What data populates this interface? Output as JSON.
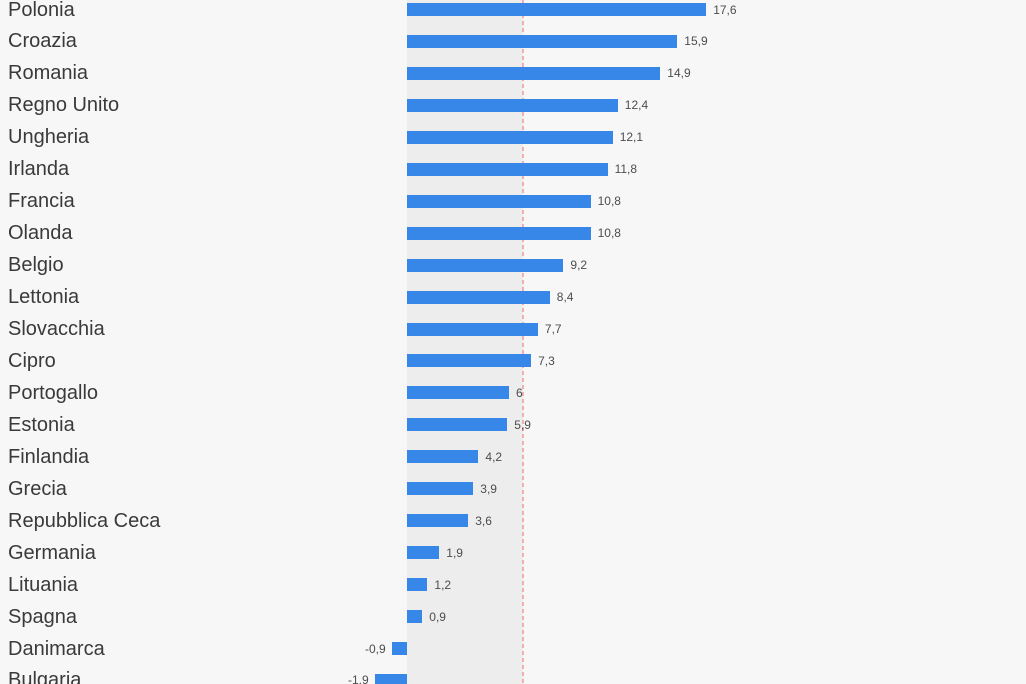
{
  "chart_data": {
    "type": "bar",
    "orientation": "horizontal",
    "title": "",
    "xlabel": "",
    "ylabel": "",
    "categories": [
      "Polonia",
      "Croazia",
      "Romania",
      "Regno Unito",
      "Ungheria",
      "Irlanda",
      "Francia",
      "Olanda",
      "Belgio",
      "Lettonia",
      "Slovacchia",
      "Cipro",
      "Portogallo",
      "Estonia",
      "Finlandia",
      "Grecia",
      "Repubblica Ceca",
      "Germania",
      "Lituania",
      "Spagna",
      "Danimarca",
      "Bulgaria"
    ],
    "values": [
      17.6,
      15.9,
      14.9,
      12.4,
      12.1,
      11.8,
      10.8,
      10.8,
      9.2,
      8.4,
      7.7,
      7.3,
      6,
      5.9,
      4.2,
      3.9,
      3.6,
      1.9,
      1.2,
      0.9,
      -0.9,
      -1.9
    ],
    "value_labels": [
      "17,6",
      "15,9",
      "14,9",
      "12,4",
      "12,1",
      "11,8",
      "10,8",
      "10,8",
      "9,2",
      "8,4",
      "7,7",
      "7,3",
      "6",
      "5,9",
      "4,2",
      "3,9",
      "3,6",
      "1,9",
      "1,2",
      "0,9",
      "-0,9",
      "-1,9"
    ],
    "decimal_separator": ",",
    "value_labels_shown": true,
    "grid": false,
    "legend": "none",
    "reference_line_value": 6.8,
    "highlight_band_range": [
      0,
      6.8
    ],
    "colors": {
      "background": "#f7f7f7",
      "bar": "#3787e9",
      "highlight_band": "#ededed",
      "reference_line": "#f3aeae",
      "category_text": "#3a3a3a",
      "value_text": "#4d4d4d"
    }
  }
}
